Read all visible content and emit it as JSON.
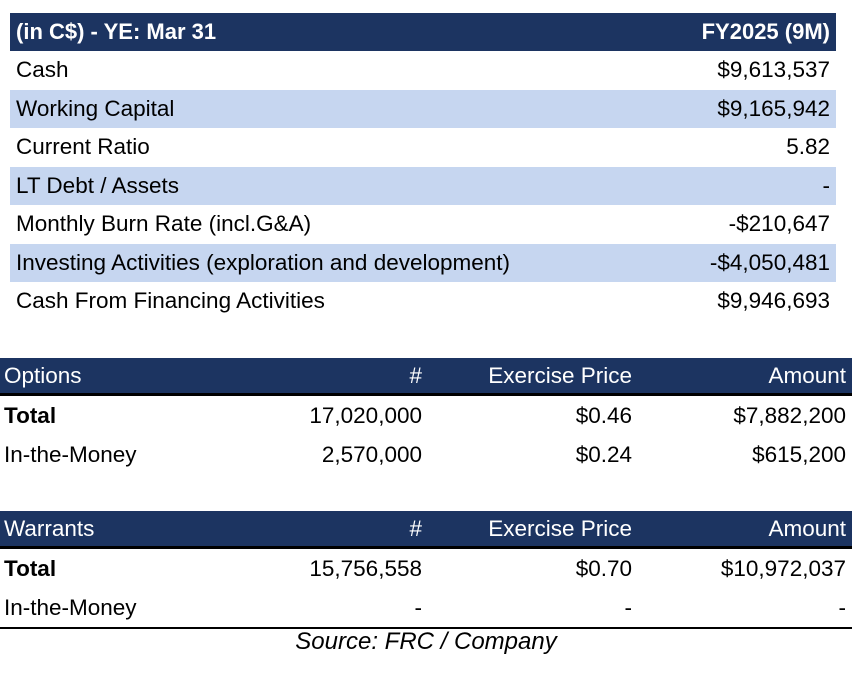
{
  "financials": {
    "header_label": "(in C$) - YE: Mar 31",
    "header_period": "FY2025 (9M)",
    "rows": [
      {
        "label": "Cash",
        "value": "$9,613,537"
      },
      {
        "label": "Working Capital",
        "value": "$9,165,942"
      },
      {
        "label": "Current Ratio",
        "value": "5.82"
      },
      {
        "label": "LT Debt / Assets",
        "value": "-"
      },
      {
        "label": "Monthly Burn Rate (incl.G&A)",
        "value": "-$210,647"
      },
      {
        "label": "Investing Activities (exploration and development)",
        "value": "-$4,050,481"
      },
      {
        "label": "Cash From Financing Activities",
        "value": "$9,946,693"
      }
    ]
  },
  "options": {
    "header": {
      "label": "Options",
      "count": "#",
      "price": "Exercise Price",
      "amount": "Amount"
    },
    "rows": [
      {
        "label": "Total",
        "count": "17,020,000",
        "price": "$0.46",
        "amount": "$7,882,200"
      },
      {
        "label": "In-the-Money",
        "count": "2,570,000",
        "price": "$0.24",
        "amount": "$615,200"
      }
    ]
  },
  "warrants": {
    "header": {
      "label": "Warrants",
      "count": "#",
      "price": "Exercise Price",
      "amount": "Amount"
    },
    "rows": [
      {
        "label": "Total",
        "count": "15,756,558",
        "price": "$0.70",
        "amount": "$10,972,037"
      },
      {
        "label": "In-the-Money",
        "count": "-",
        "price": "-",
        "amount": "-"
      }
    ]
  },
  "source": "Source: FRC / Company",
  "colors": {
    "header_bg": "#1c3461",
    "alt_row_bg": "#c6d6f0"
  }
}
